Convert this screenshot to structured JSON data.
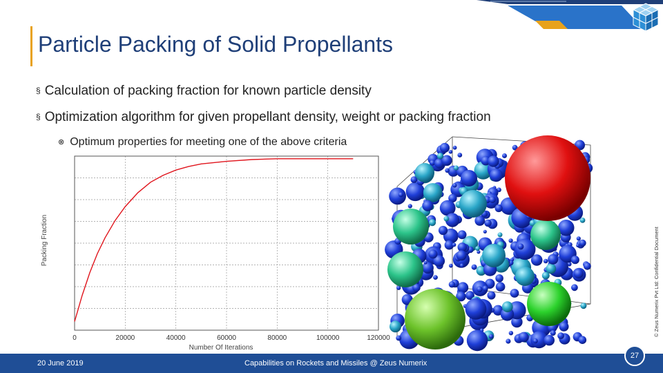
{
  "slide": {
    "title": "Particle Packing of Solid Propellants",
    "bullets": [
      "Calculation of packing fraction for known particle density",
      "Optimization algorithm for given propellant density, weight or packing fraction"
    ],
    "sub_bullet": "Optimum properties for meeting one of the above criteria",
    "bullet_marker": "§",
    "sub_marker": "⊗",
    "footer_date": "20 June 2019",
    "footer_center": "Capabilities on Rockets and Missiles @ Zeus Numerix",
    "page_number": "27",
    "confidential": "© Zeus Numerix Pvt Ltd: Confidential Document"
  },
  "colors": {
    "title": "#1f3f78",
    "accent_orange": "#e8a21b",
    "footer_blue": "#1f4e96",
    "curve": "#e0141c"
  },
  "chart_data": {
    "type": "line",
    "xlabel": "Number Of Iterations",
    "ylabel": "Packing Fraction",
    "xlim": [
      0,
      120000
    ],
    "x_ticks": [
      0,
      20000,
      40000,
      60000,
      80000,
      100000,
      120000
    ],
    "x_tick_labels": [
      "0",
      "20000",
      "40000",
      "60000",
      "80000",
      "100000",
      "120000"
    ],
    "grid": true,
    "series": [
      {
        "x": [
          0,
          1000,
          3000,
          6000,
          9000,
          12000,
          16000,
          20000,
          25000,
          30000,
          35000,
          40000,
          45000,
          50000,
          60000,
          70000,
          80000,
          90000,
          100000,
          110000
        ],
        "y": [
          0.05,
          0.1,
          0.2,
          0.33,
          0.44,
          0.53,
          0.63,
          0.71,
          0.79,
          0.85,
          0.89,
          0.92,
          0.94,
          0.955,
          0.97,
          0.98,
          0.985,
          0.985,
          0.985,
          0.985
        ]
      }
    ]
  }
}
